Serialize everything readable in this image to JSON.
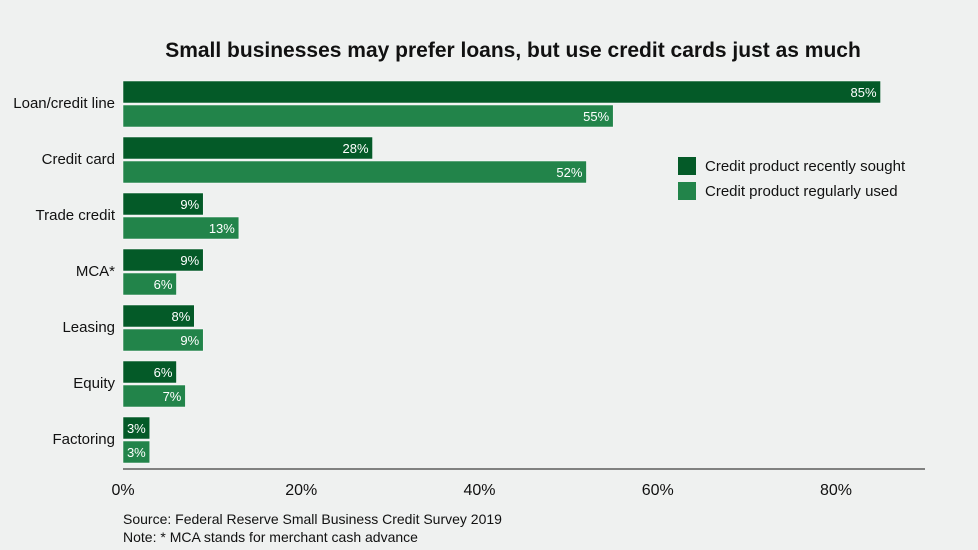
{
  "chart_data": {
    "type": "bar",
    "orientation": "horizontal",
    "title": "Small businesses may prefer loans, but use credit cards just as much",
    "categories": [
      "Loan/credit line",
      "Credit card",
      "Trade credit",
      "MCA*",
      "Leasing",
      "Equity",
      "Factoring"
    ],
    "series": [
      {
        "name": "Credit product recently sought",
        "color": "#045a28",
        "values": [
          85,
          28,
          9,
          9,
          8,
          6,
          3
        ]
      },
      {
        "name": "Credit product regularly used",
        "color": "#22844a",
        "values": [
          55,
          52,
          13,
          6,
          9,
          7,
          3
        ]
      }
    ],
    "xticks": [
      "0%",
      "20%",
      "40%",
      "60%",
      "80%"
    ],
    "xtick_values": [
      0,
      20,
      40,
      60,
      80
    ],
    "xlim": [
      0,
      90
    ],
    "xlabel": "",
    "ylabel": "",
    "legend": "right",
    "grid": false
  },
  "source": "Source: Federal Reserve Small Business Credit Survey 2019",
  "note": "Note: * MCA stands for merchant cash advance"
}
